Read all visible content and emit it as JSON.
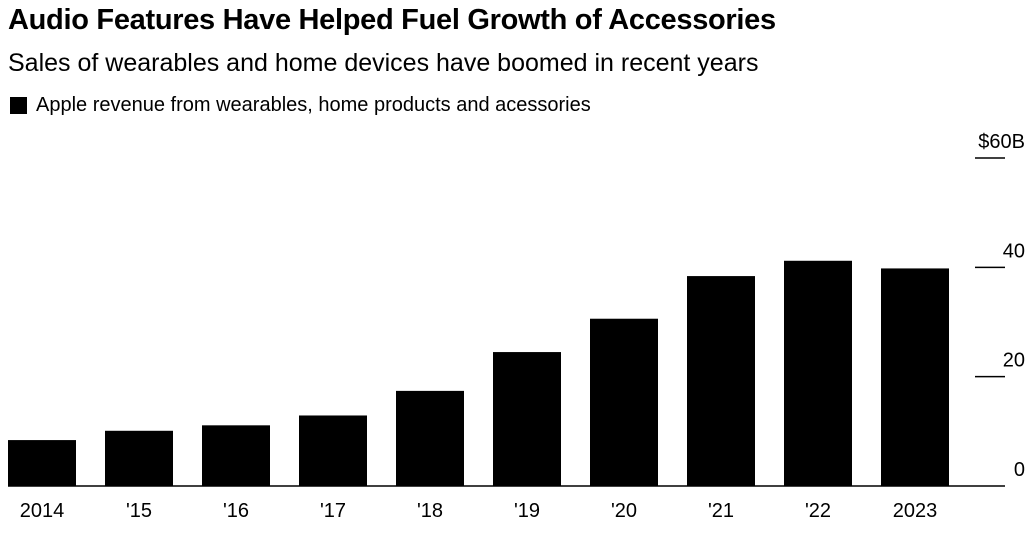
{
  "chart_data": {
    "type": "bar",
    "title": "Audio Features Have Helped Fuel Growth of Accessories",
    "subtitle": "Sales of wearables and home devices have boomed in recent years",
    "legend": {
      "position": "top-left",
      "entries": [
        "Apple revenue from wearables, home products and acessories"
      ]
    },
    "categories": [
      "2014",
      "'15",
      "'16",
      "'17",
      "'18",
      "'19",
      "'20",
      "'21",
      "'22",
      "2023"
    ],
    "series": [
      {
        "name": "Apple revenue from wearables, home products and acessories",
        "values": [
          8.4,
          10.1,
          11.1,
          12.9,
          17.4,
          24.5,
          30.6,
          38.4,
          41.2,
          39.8
        ],
        "color": "#000000"
      }
    ],
    "yticks": [
      0,
      20,
      40,
      60
    ],
    "ytick_labels": [
      "0",
      "20",
      "40",
      "$60B"
    ],
    "ylim": [
      0,
      60
    ],
    "y_axis_position": "right",
    "grid": false,
    "xlabel": "",
    "ylabel": ""
  }
}
